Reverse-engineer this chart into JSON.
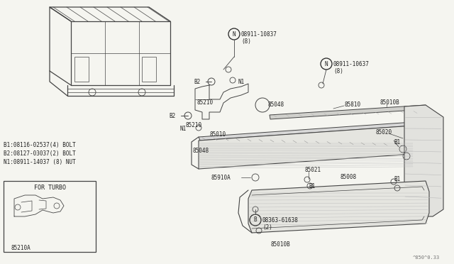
{
  "bg_color": "#f5f5f0",
  "fg_color": "#222222",
  "line_color": "#444444",
  "watermark": "^850^0.33",
  "for_turbo_text": "FOR TURBO",
  "legend_lines": [
    "B1:08116-02537(4) BOLT",
    "B2:08127-03037(2) BOLT",
    "N1:08911-14037 (8) NUT"
  ],
  "part_number_N1": {
    "circle_label": "N",
    "text": "08911-10837",
    "sub": "(8)"
  },
  "part_number_N2": {
    "circle_label": "N",
    "text": "08911-10637",
    "sub": "(8)"
  },
  "part_number_B1": {
    "circle_label": "B",
    "text": "08363-61638",
    "sub": "(2)"
  }
}
